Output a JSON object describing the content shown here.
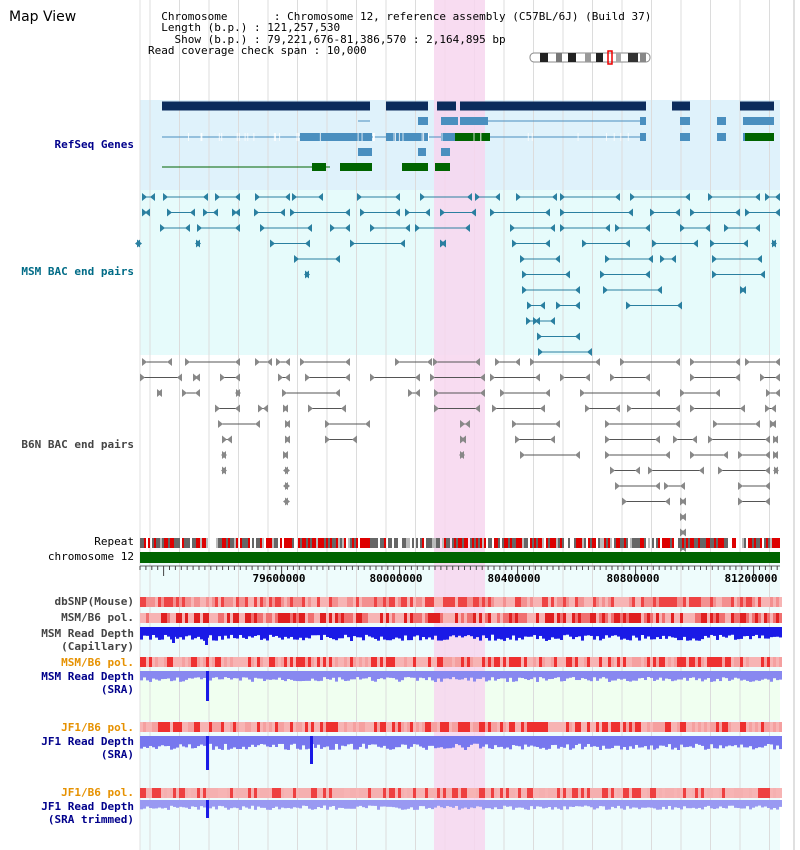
{
  "view": {
    "title": "Map View"
  },
  "info": {
    "chromosome_key": "Chromosome",
    "chromosome_value": "Chromosome 12, reference assembly (C57BL/6J) (Build 37)",
    "length_key": "Length (b.p.)",
    "length_value": "121,257,530",
    "show_key": "Show (b.p.)",
    "show_value": "79,221,676-81,386,570 : 2,164,895 bp",
    "span_key": "Read coverage check span",
    "span_value": "10,000"
  },
  "tracks": {
    "refseq": "RefSeq Genes",
    "msm_bac": "MSM BAC end pairs",
    "b6n_bac": "B6N BAC end pairs",
    "repeat": "Repeat",
    "chromosome": "chromosome 12",
    "dbsnp": "dbSNP(Mouse)",
    "msm_b6_pol": "MSM/B6 pol.",
    "msm_depth_cap_1": "MSM Read Depth",
    "msm_depth_cap_2": "(Capillary)",
    "msm_b6_pol_2": "MSM/B6 pol.",
    "msm_depth_sra_1": "MSM Read Depth",
    "msm_depth_sra_2": "(SRA)",
    "jf1_pol": "JF1/B6 pol.",
    "jf1_depth_1": "JF1 Read Depth",
    "jf1_depth_2": "(SRA)",
    "jf1_pol_2": "JF1/B6 pol.",
    "jf1_trim_1": "JF1 Read Depth",
    "jf1_trim_2": "(SRA trimmed)"
  },
  "ruler": {
    "ticks": [
      "79600000",
      "80000000",
      "80400000",
      "80800000",
      "81200000"
    ]
  },
  "colors": {
    "refseq_bg": "#dff2fb",
    "msm_bg": "#e6fbfb",
    "highlight": "#f7d6ef",
    "gene_dark": "#0b2c5c",
    "gene_mid": "#4a8fbf",
    "gene_green": "#006400",
    "chrom_green": "#006400",
    "depth_blue": "#1a1ae6",
    "depth_light": "#8888f0",
    "pol_red": "#f06060"
  }
}
